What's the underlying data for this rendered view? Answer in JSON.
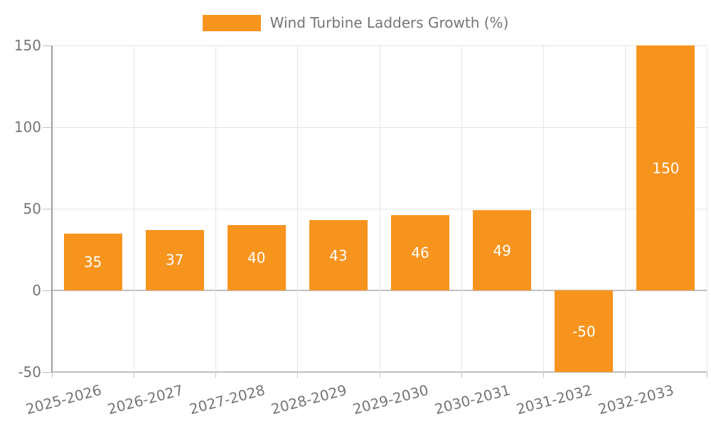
{
  "chart_data": {
    "type": "bar",
    "title": "",
    "series_name": "Wind Turbine Ladders Growth (%)",
    "legend_position": "top",
    "categories": [
      "2025-2026",
      "2026-2027",
      "2027-2028",
      "2028-2029",
      "2029-2030",
      "2030-2031",
      "2031-2032",
      "2032-2033"
    ],
    "values": [
      35,
      37,
      40,
      43,
      46,
      49,
      -50,
      150
    ],
    "bar_labels": [
      "35",
      "37",
      "40",
      "43",
      "46",
      "49",
      "-50",
      "150"
    ],
    "xlabel": "",
    "ylabel": "",
    "ylim": [
      -50,
      150
    ],
    "yticks": [
      150,
      100,
      50,
      0,
      -50
    ],
    "ytick_labels": [
      "150",
      "100",
      "50",
      "0",
      "-50"
    ],
    "grid": true,
    "colors": {
      "bar": "#f7941e",
      "bar_label": "#ffffff",
      "axis_text": "#757575",
      "gridline": "#e6e6e6",
      "baseline": "#c0c0c0",
      "axis_line": "#9e9e9e",
      "background": "#ffffff"
    }
  }
}
